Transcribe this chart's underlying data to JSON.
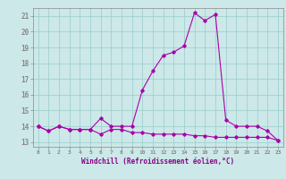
{
  "xlabel": "Windchill (Refroidissement éolien,°C)",
  "background_color": "#cce8e8",
  "line_color": "#aa00aa",
  "grid_color": "#99cccc",
  "ylim": [
    12.7,
    21.5
  ],
  "xlim": [
    -0.5,
    23.5
  ],
  "yticks": [
    13,
    14,
    15,
    16,
    17,
    18,
    19,
    20,
    21
  ],
  "xticks": [
    0,
    1,
    2,
    3,
    4,
    5,
    6,
    7,
    8,
    9,
    10,
    11,
    12,
    13,
    14,
    15,
    16,
    17,
    18,
    19,
    20,
    21,
    22,
    23
  ],
  "line1_x": [
    0,
    1,
    2,
    3,
    4,
    5,
    6,
    7,
    8,
    9,
    10,
    11,
    12,
    13,
    14,
    15,
    16,
    17,
    18,
    19,
    20,
    21,
    22,
    23
  ],
  "line1_y": [
    14.0,
    13.7,
    14.0,
    13.8,
    13.8,
    13.8,
    14.5,
    14.0,
    14.0,
    14.0,
    16.3,
    17.5,
    18.5,
    18.7,
    19.1,
    21.2,
    20.7,
    21.1,
    14.4,
    14.0,
    14.0,
    14.0,
    13.7,
    13.1
  ],
  "line2_x": [
    0,
    1,
    2,
    3,
    4,
    5,
    6,
    7,
    8,
    9,
    10,
    11,
    12,
    13,
    14,
    15,
    16,
    17,
    18,
    19,
    20,
    21,
    22,
    23
  ],
  "line2_y": [
    14.0,
    13.7,
    14.0,
    13.8,
    13.8,
    13.8,
    13.5,
    13.8,
    13.8,
    13.6,
    13.6,
    13.5,
    13.5,
    13.5,
    13.5,
    13.4,
    13.4,
    13.3,
    13.3,
    13.3,
    13.3,
    13.3,
    13.3,
    13.1
  ],
  "marker": "D",
  "marker_size": 1.8,
  "line_width": 0.8
}
